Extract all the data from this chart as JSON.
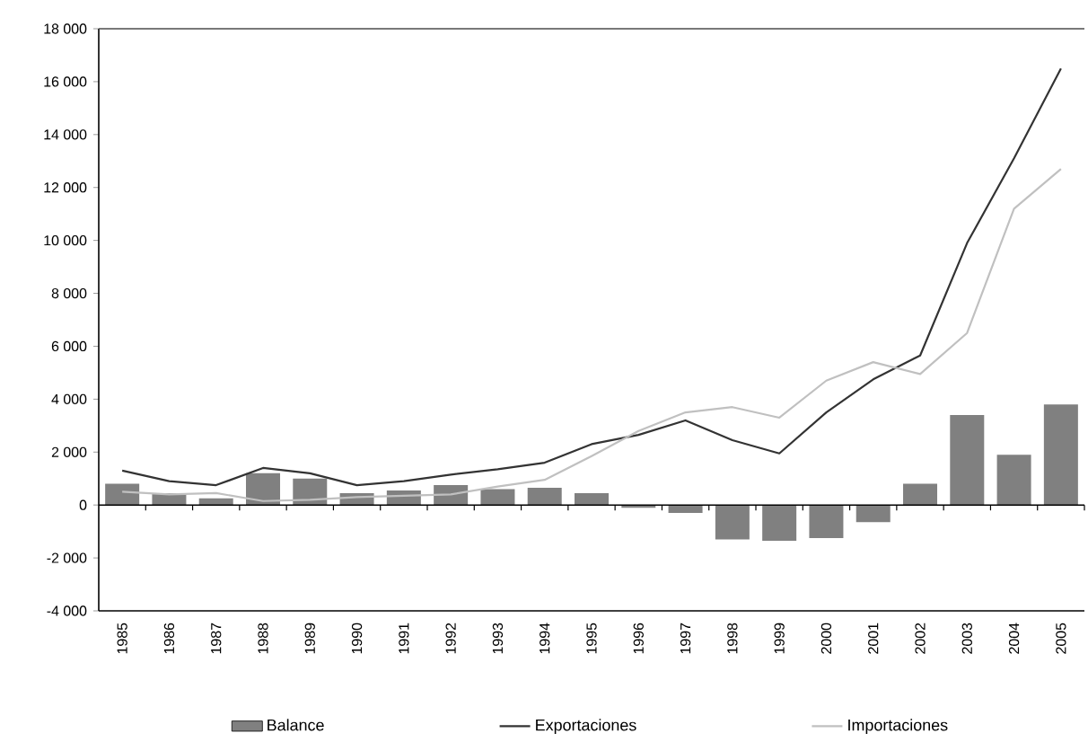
{
  "chart_data": {
    "type": "bar",
    "categories": [
      "1985",
      "1986",
      "1987",
      "1988",
      "1989",
      "1990",
      "1991",
      "1992",
      "1993",
      "1994",
      "1995",
      "1996",
      "1997",
      "1998",
      "1999",
      "2000",
      "2001",
      "2002",
      "2003",
      "2004",
      "2005"
    ],
    "series": [
      {
        "name": "Balance",
        "color": "#808080",
        "values": [
          800,
          450,
          250,
          1200,
          1000,
          450,
          550,
          750,
          600,
          650,
          450,
          -100,
          -300,
          -1300,
          -1350,
          -1250,
          -650,
          800,
          3400,
          1900,
          3800
        ]
      },
      {
        "name": "Exportaciones",
        "type": "line",
        "color": "#333333",
        "values": [
          1300,
          900,
          750,
          1400,
          1200,
          750,
          900,
          1150,
          1350,
          1600,
          2300,
          2650,
          3200,
          2450,
          1950,
          3500,
          4750,
          5650,
          9900,
          13100,
          16500
        ]
      },
      {
        "name": "Importaciones",
        "type": "line",
        "color": "#c0c0c0",
        "values": [
          500,
          400,
          450,
          150,
          200,
          300,
          350,
          400,
          700,
          950,
          1850,
          2800,
          3500,
          3700,
          3300,
          4700,
          5400,
          4950,
          6500,
          11200,
          12700
        ]
      }
    ],
    "ylim": [
      -4000,
      18000
    ],
    "yticks": [
      {
        "value": -4000,
        "label": "-4 000"
      },
      {
        "value": -2000,
        "label": "-2 000"
      },
      {
        "value": 0,
        "label": "0"
      },
      {
        "value": 2000,
        "label": "2 000"
      },
      {
        "value": 4000,
        "label": "4 000"
      },
      {
        "value": 6000,
        "label": "6 000"
      },
      {
        "value": 8000,
        "label": "8 000"
      },
      {
        "value": 10000,
        "label": "10 000"
      },
      {
        "value": 12000,
        "label": "12 000"
      },
      {
        "value": 14000,
        "label": "14 000"
      },
      {
        "value": 16000,
        "label": "16 000"
      },
      {
        "value": 18000,
        "label": "18 000"
      }
    ],
    "legend": "bottom",
    "marker": "none"
  }
}
